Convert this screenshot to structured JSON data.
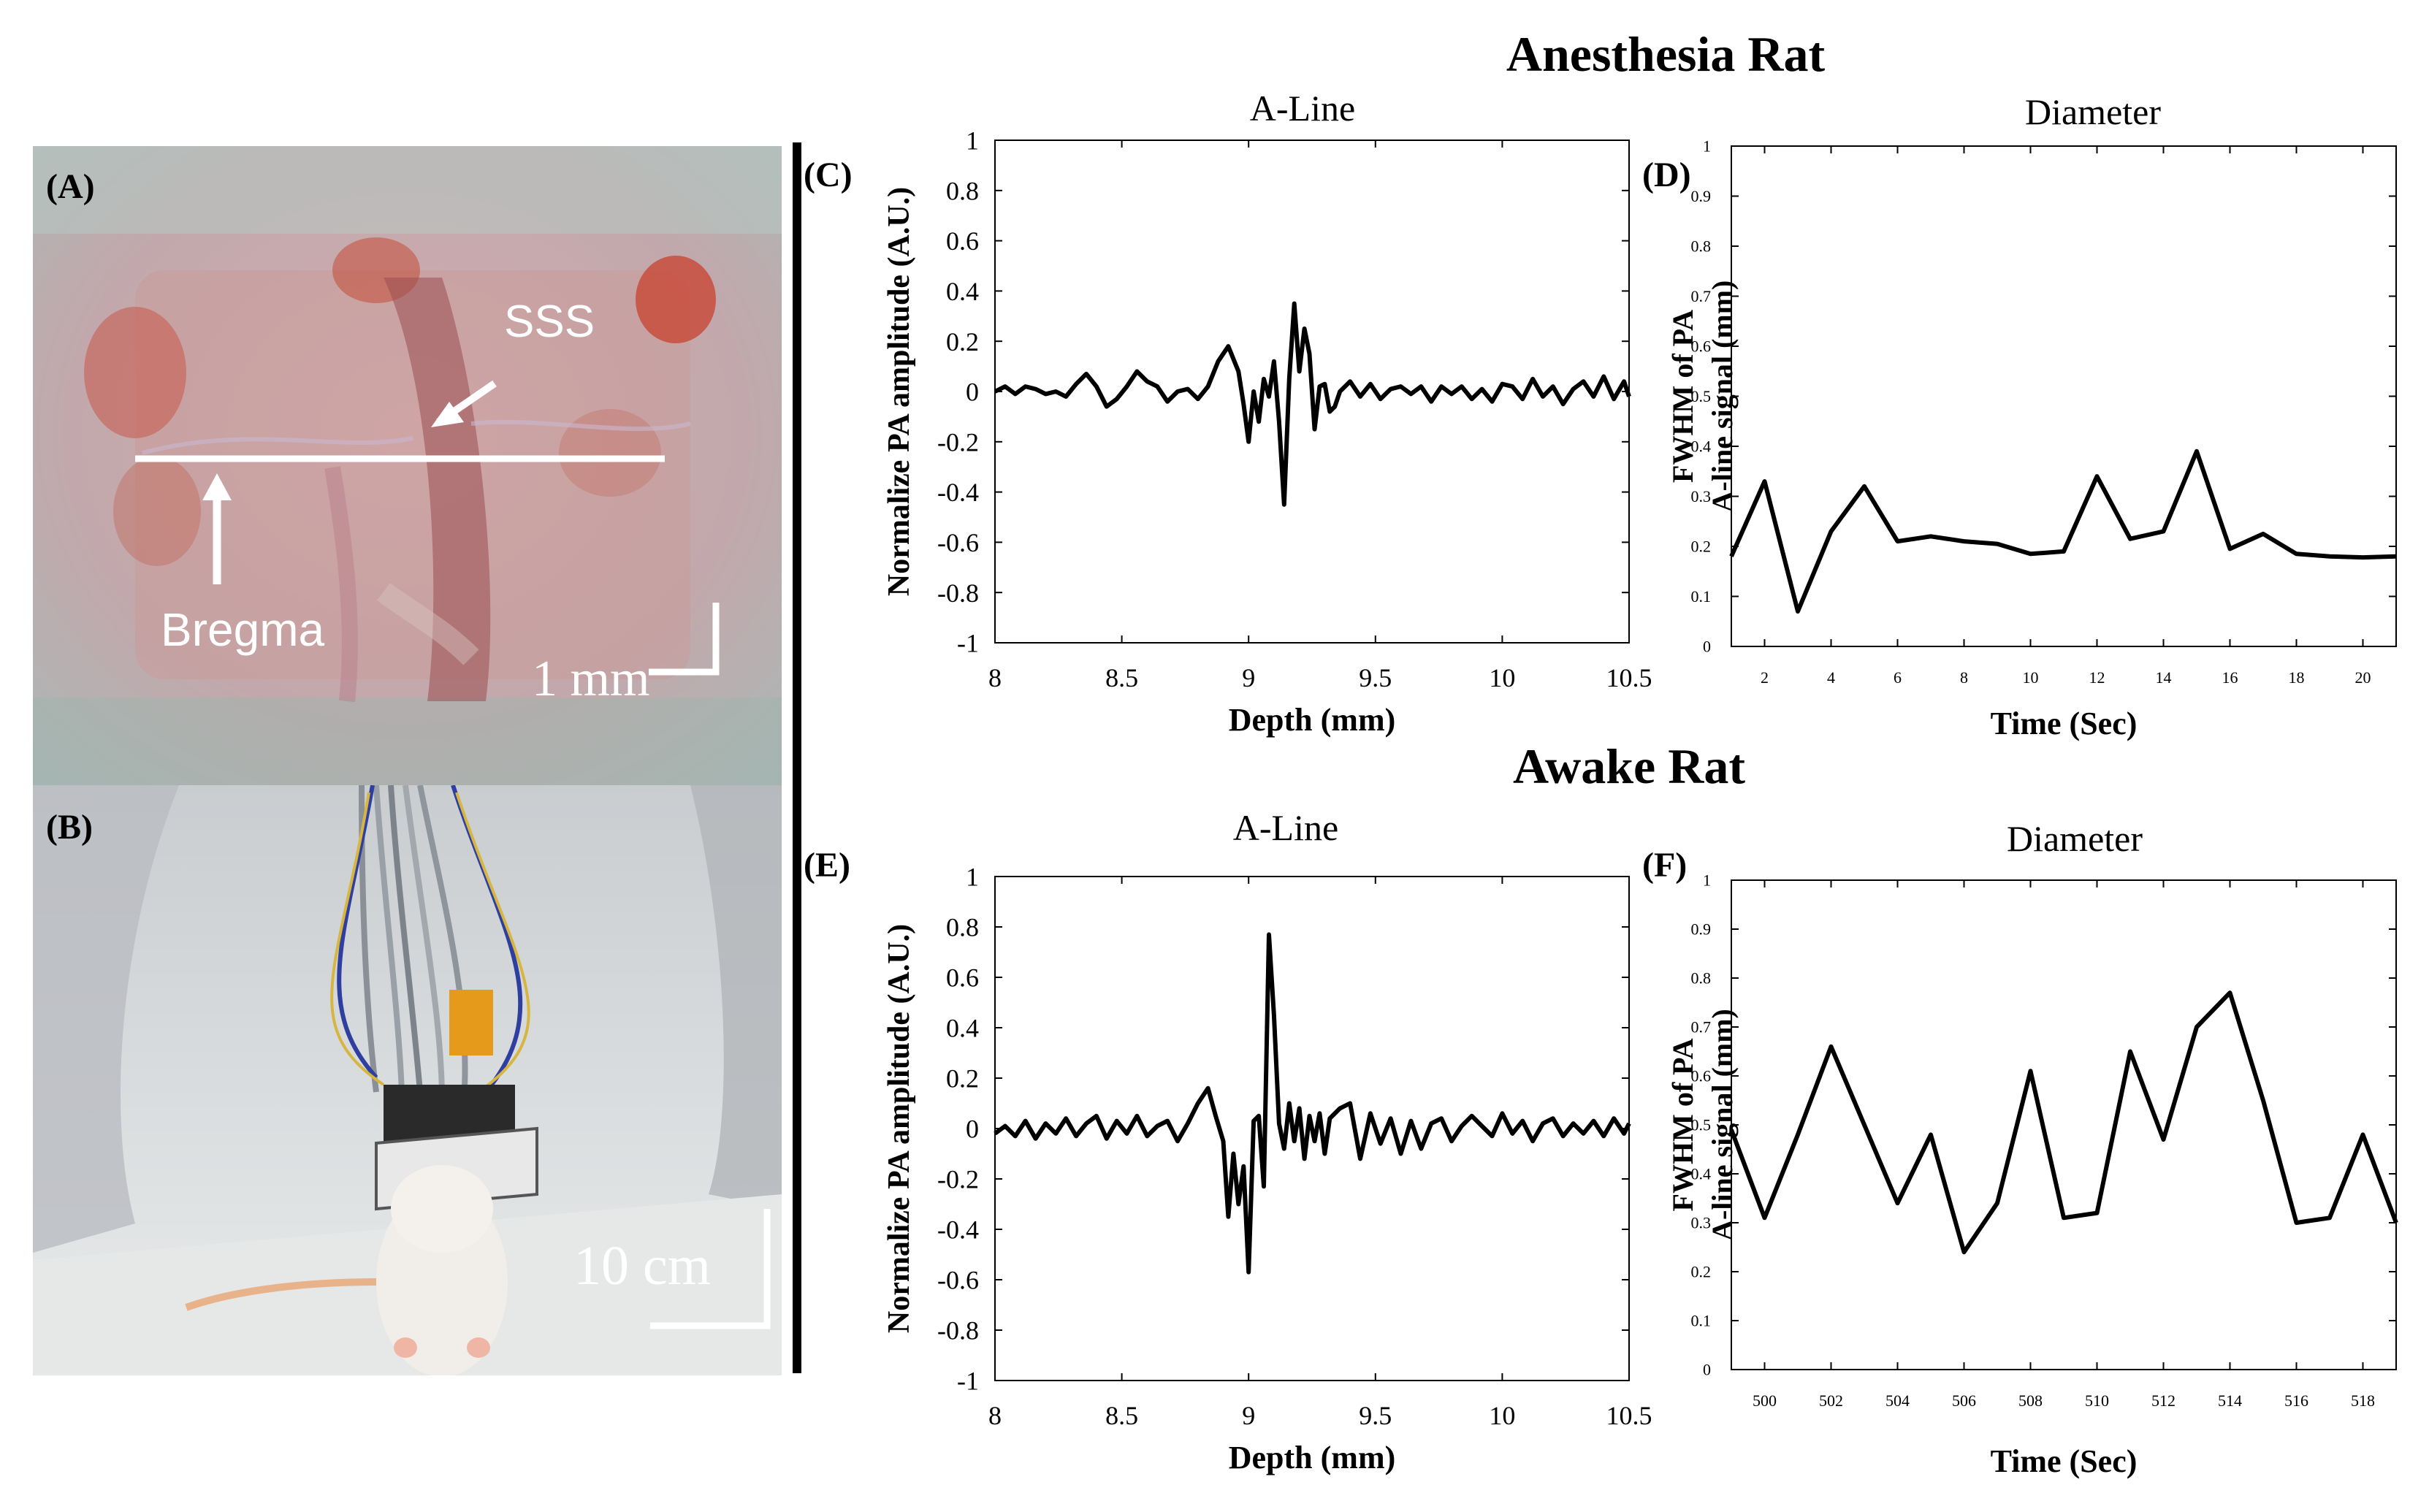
{
  "figure": {
    "headings": {
      "anesthesia": "Anesthesia Rat",
      "awake": "Awake Rat"
    },
    "photo_a": {
      "panel": "(A)",
      "vessel_label": "SSS",
      "landmark_label": "Bregma",
      "scale_label": "1 mm"
    },
    "photo_b": {
      "panel": "(B)",
      "scale_label": "10 cm"
    }
  },
  "chart_data": [
    {
      "id": "C",
      "panel": "(C)",
      "type": "line",
      "title": "A-Line",
      "xlabel": "Depth (mm)",
      "ylabel": "Normalize PA amplitude (A.U.)",
      "xlim": [
        8,
        10.5
      ],
      "ylim": [
        -1,
        1
      ],
      "xticks": [
        8,
        8.5,
        9,
        9.5,
        10,
        10.5
      ],
      "xtick_labels": [
        "8",
        "8.5",
        "9",
        "9.5",
        "10",
        "10.5"
      ],
      "yticks": [
        1,
        0.8,
        0.6,
        0.4,
        0.2,
        0,
        -0.2,
        -0.4,
        -0.6,
        -0.8,
        -1
      ],
      "ytick_labels": [
        "1",
        "0.8",
        "0.6",
        "0.4",
        "0.2",
        "0",
        "-0.2",
        "-0.4",
        "-0.6",
        "-0.8",
        "-1"
      ],
      "series": [
        {
          "name": "A-line",
          "color": "#000000",
          "x": [
            8.0,
            8.04,
            8.08,
            8.12,
            8.16,
            8.2,
            8.24,
            8.28,
            8.32,
            8.36,
            8.4,
            8.44,
            8.48,
            8.52,
            8.56,
            8.6,
            8.64,
            8.68,
            8.72,
            8.76,
            8.8,
            8.84,
            8.88,
            8.92,
            8.96,
            8.98,
            9.0,
            9.02,
            9.04,
            9.06,
            9.08,
            9.1,
            9.12,
            9.14,
            9.16,
            9.18,
            9.2,
            9.22,
            9.24,
            9.26,
            9.28,
            9.3,
            9.32,
            9.34,
            9.36,
            9.4,
            9.44,
            9.48,
            9.52,
            9.56,
            9.6,
            9.64,
            9.68,
            9.72,
            9.76,
            9.8,
            9.84,
            9.88,
            9.92,
            9.96,
            10.0,
            10.04,
            10.08,
            10.12,
            10.16,
            10.2,
            10.24,
            10.28,
            10.32,
            10.36,
            10.4,
            10.44,
            10.48,
            10.5
          ],
          "y": [
            0.0,
            0.02,
            -0.01,
            0.02,
            0.01,
            -0.01,
            0.0,
            -0.02,
            0.03,
            0.07,
            0.02,
            -0.06,
            -0.03,
            0.02,
            0.08,
            0.04,
            0.02,
            -0.04,
            0.0,
            0.01,
            -0.03,
            0.02,
            0.12,
            0.18,
            0.08,
            -0.05,
            -0.2,
            0.0,
            -0.12,
            0.05,
            -0.02,
            0.12,
            -0.12,
            -0.45,
            0.05,
            0.35,
            0.08,
            0.25,
            0.15,
            -0.15,
            0.02,
            0.03,
            -0.08,
            -0.06,
            0.0,
            0.04,
            -0.02,
            0.03,
            -0.03,
            0.01,
            0.02,
            -0.01,
            0.02,
            -0.04,
            0.02,
            -0.01,
            0.02,
            -0.03,
            0.01,
            -0.04,
            0.03,
            0.02,
            -0.03,
            0.05,
            -0.02,
            0.02,
            -0.05,
            0.01,
            0.04,
            -0.02,
            0.06,
            -0.03,
            0.04,
            -0.02
          ]
        }
      ]
    },
    {
      "id": "D",
      "panel": "(D)",
      "type": "line",
      "title": "Diameter",
      "xlabel": "Time (Sec)",
      "ylabel": "FWHM of PA A-line signal (mm)",
      "xlim": [
        1,
        21
      ],
      "ylim": [
        0,
        1
      ],
      "xticks": [
        2,
        4,
        6,
        8,
        10,
        12,
        14,
        16,
        18,
        20
      ],
      "xtick_labels": [
        "2",
        "4",
        "6",
        "8",
        "10",
        "12",
        "14",
        "16",
        "18",
        "20"
      ],
      "yticks": [
        0,
        0.1,
        0.2,
        0.3,
        0.4,
        0.5,
        0.6,
        0.7,
        0.8,
        0.9,
        1
      ],
      "ytick_labels": [
        "0",
        "0.1",
        "0.2",
        "0.3",
        "0.4",
        "0.5",
        "0.6",
        "0.7",
        "0.8",
        "0.9",
        "1"
      ],
      "series": [
        {
          "name": "FWHM",
          "color": "#000000",
          "x": [
            1,
            2,
            3,
            4,
            5,
            6,
            7,
            8,
            9,
            10,
            11,
            12,
            13,
            14,
            15,
            16,
            17,
            18,
            19,
            20,
            21
          ],
          "y": [
            0.18,
            0.33,
            0.07,
            0.23,
            0.32,
            0.21,
            0.22,
            0.21,
            0.205,
            0.185,
            0.19,
            0.34,
            0.215,
            0.23,
            0.39,
            0.195,
            0.225,
            0.185,
            0.18,
            0.178,
            0.18
          ]
        }
      ]
    },
    {
      "id": "E",
      "panel": "(E)",
      "type": "line",
      "title": "A-Line",
      "xlabel": "Depth (mm)",
      "ylabel": "Normalize PA amplitude (A.U.)",
      "xlim": [
        8,
        10.5
      ],
      "ylim": [
        -1,
        1
      ],
      "xticks": [
        8,
        8.5,
        9,
        9.5,
        10,
        10.5
      ],
      "xtick_labels": [
        "8",
        "8.5",
        "9",
        "9.5",
        "10",
        "10.5"
      ],
      "yticks": [
        1,
        0.8,
        0.6,
        0.4,
        0.2,
        0,
        -0.2,
        -0.4,
        -0.6,
        -0.8,
        -1
      ],
      "ytick_labels": [
        "1",
        "0.8",
        "0.6",
        "0.4",
        "0.2",
        "0",
        "-0.2",
        "-0.4",
        "-0.6",
        "-0.8",
        "-1"
      ],
      "series": [
        {
          "name": "A-line",
          "color": "#000000",
          "x": [
            8.0,
            8.04,
            8.08,
            8.12,
            8.16,
            8.2,
            8.24,
            8.28,
            8.32,
            8.36,
            8.4,
            8.44,
            8.48,
            8.52,
            8.56,
            8.6,
            8.64,
            8.68,
            8.72,
            8.76,
            8.8,
            8.84,
            8.87,
            8.9,
            8.92,
            8.94,
            8.96,
            8.98,
            9.0,
            9.02,
            9.04,
            9.06,
            9.08,
            9.1,
            9.12,
            9.14,
            9.16,
            9.18,
            9.2,
            9.22,
            9.24,
            9.26,
            9.28,
            9.3,
            9.32,
            9.36,
            9.4,
            9.44,
            9.48,
            9.52,
            9.56,
            9.6,
            9.64,
            9.68,
            9.72,
            9.76,
            9.8,
            9.84,
            9.88,
            9.92,
            9.96,
            10.0,
            10.04,
            10.08,
            10.12,
            10.16,
            10.2,
            10.24,
            10.28,
            10.32,
            10.36,
            10.4,
            10.44,
            10.48,
            10.5
          ],
          "y": [
            -0.02,
            0.01,
            -0.03,
            0.03,
            -0.04,
            0.02,
            -0.02,
            0.04,
            -0.03,
            0.02,
            0.05,
            -0.04,
            0.03,
            -0.02,
            0.05,
            -0.03,
            0.01,
            0.03,
            -0.05,
            0.02,
            0.1,
            0.16,
            0.05,
            -0.05,
            -0.35,
            -0.1,
            -0.3,
            -0.15,
            -0.57,
            0.03,
            0.05,
            -0.23,
            0.77,
            0.45,
            0.02,
            -0.08,
            0.1,
            -0.05,
            0.08,
            -0.12,
            0.05,
            -0.05,
            0.06,
            -0.1,
            0.04,
            0.08,
            0.1,
            -0.12,
            0.06,
            -0.06,
            0.04,
            -0.1,
            0.03,
            -0.08,
            0.02,
            0.04,
            -0.05,
            0.01,
            0.05,
            0.01,
            -0.03,
            0.06,
            -0.02,
            0.03,
            -0.05,
            0.02,
            0.04,
            -0.03,
            0.02,
            -0.02,
            0.03,
            -0.03,
            0.04,
            -0.02,
            0.02
          ]
        }
      ]
    },
    {
      "id": "F",
      "panel": "(F)",
      "type": "line",
      "title": "Diameter",
      "xlabel": "Time (Sec)",
      "ylabel": "FWHM of PA A-line signal (mm)",
      "xlim": [
        499,
        519
      ],
      "ylim": [
        0,
        1
      ],
      "xticks": [
        500,
        502,
        504,
        506,
        508,
        510,
        512,
        514,
        516,
        518
      ],
      "xtick_labels": [
        "500",
        "502",
        "504",
        "506",
        "508",
        "510",
        "512",
        "514",
        "516",
        "518"
      ],
      "yticks": [
        0,
        0.1,
        0.2,
        0.3,
        0.4,
        0.5,
        0.6,
        0.7,
        0.8,
        0.9,
        1
      ],
      "ytick_labels": [
        "0",
        "0.1",
        "0.2",
        "0.3",
        "0.4",
        "0.5",
        "0.6",
        "0.7",
        "0.8",
        "0.9",
        "1"
      ],
      "series": [
        {
          "name": "FWHM",
          "color": "#000000",
          "x": [
            499,
            500,
            501,
            502,
            503,
            504,
            505,
            506,
            507,
            508,
            509,
            510,
            511,
            512,
            513,
            514,
            515,
            516,
            517,
            518,
            519
          ],
          "y": [
            0.49,
            0.31,
            0.48,
            0.66,
            0.5,
            0.34,
            0.48,
            0.24,
            0.34,
            0.61,
            0.31,
            0.32,
            0.65,
            0.47,
            0.7,
            0.77,
            0.55,
            0.3,
            0.31,
            0.48,
            0.3
          ]
        }
      ]
    }
  ]
}
